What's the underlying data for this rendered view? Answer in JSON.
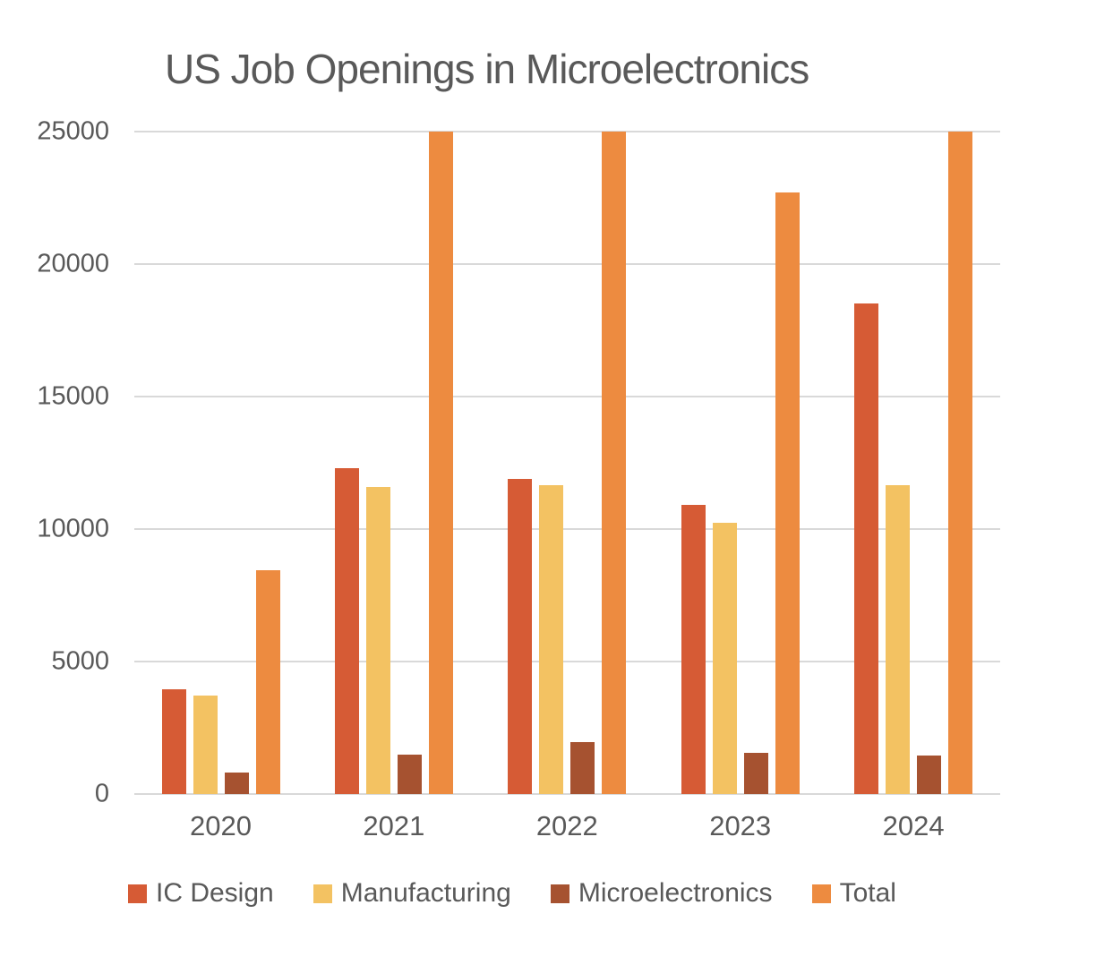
{
  "chart_data": {
    "type": "bar",
    "title": "US Job Openings in Microelectronics",
    "categories": [
      "2020",
      "2021",
      "2022",
      "2023",
      "2024"
    ],
    "series": [
      {
        "name": "IC Design",
        "color": "#D65B35",
        "values": [
          3950,
          12300,
          11900,
          10900,
          18500
        ]
      },
      {
        "name": "Manufacturing",
        "color": "#F3C262",
        "values": [
          3700,
          11600,
          11650,
          10250,
          11650
        ]
      },
      {
        "name": "Microelectronics",
        "color": "#A65230",
        "values": [
          800,
          1500,
          1950,
          1550,
          1450
        ]
      },
      {
        "name": "Total",
        "color": "#ED8B40",
        "values": [
          8450,
          25000,
          25000,
          22700,
          25000
        ],
        "clipped_at_ymax": [
          false,
          true,
          true,
          false,
          true
        ]
      }
    ],
    "xlabel": "",
    "ylabel": "",
    "ylim": [
      0,
      25000
    ],
    "yticks": [
      0,
      5000,
      10000,
      15000,
      20000,
      25000
    ],
    "grid": true,
    "legend_position": "bottom"
  },
  "colors": {
    "text": "#595959",
    "gridline": "#D9D9D9",
    "background": "#FFFFFF"
  }
}
